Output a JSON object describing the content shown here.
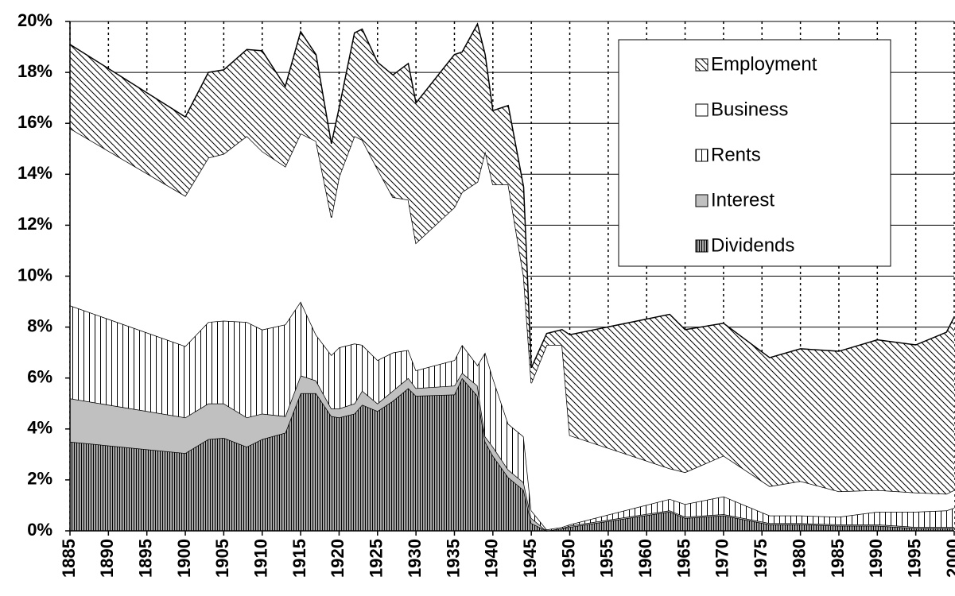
{
  "chart_data": {
    "type": "stacked-area",
    "x": [
      1885,
      1900,
      1903,
      1905,
      1908,
      1910,
      1913,
      1915,
      1917,
      1919,
      1920,
      1922,
      1923,
      1925,
      1927,
      1929,
      1930,
      1935,
      1936,
      1938,
      1939,
      1940,
      1942,
      1944,
      1945,
      1947,
      1949,
      1950,
      1963,
      1965,
      1970,
      1976,
      1980,
      1985,
      1990,
      1995,
      1999,
      2000
    ],
    "series": [
      {
        "name": "Dividends",
        "color": "#a6a6a6",
        "pattern": "dense-vertical",
        "values": [
          3.5,
          3.05,
          3.6,
          3.65,
          3.3,
          3.6,
          3.85,
          5.4,
          5.4,
          4.5,
          4.45,
          4.6,
          4.95,
          4.7,
          5.1,
          5.6,
          5.3,
          5.35,
          6.0,
          5.3,
          3.5,
          2.95,
          2.1,
          1.6,
          0.3,
          0,
          0.1,
          0.15,
          0.75,
          0.5,
          0.6,
          0.25,
          0.25,
          0.2,
          0.2,
          0.1,
          0.1,
          0.1
        ]
      },
      {
        "name": "Interest",
        "color": "#c0c0c0",
        "pattern": "none",
        "values": [
          1.7,
          1.4,
          1.4,
          1.35,
          1.15,
          1.0,
          0.65,
          0.7,
          0.5,
          0.3,
          0.35,
          0.4,
          0.55,
          0.3,
          0.4,
          0.4,
          0.3,
          0.35,
          0.2,
          0.4,
          0.2,
          0.35,
          0.3,
          0.3,
          0.2,
          0,
          0,
          0.05,
          0.05,
          0.05,
          0.05,
          0.05,
          0.05,
          0.05,
          0.05,
          0.05,
          0.05,
          0.05
        ]
      },
      {
        "name": "Rents",
        "color": "#ffffff",
        "pattern": "vertical",
        "values": [
          3.65,
          2.8,
          3.2,
          3.25,
          3.75,
          3.3,
          3.6,
          2.9,
          1.8,
          2.1,
          2.4,
          2.35,
          1.8,
          1.7,
          1.5,
          1.1,
          0.7,
          1.0,
          1.1,
          0.8,
          3.3,
          2.7,
          1.8,
          1.8,
          0.3,
          0.05,
          0.05,
          0.05,
          0.45,
          0.5,
          0.7,
          0.3,
          0.3,
          0.3,
          0.5,
          0.6,
          0.65,
          0.75
        ]
      },
      {
        "name": "Business",
        "color": "#ffffff",
        "pattern": "none",
        "values": [
          6.95,
          5.9,
          6.45,
          6.55,
          7.3,
          7.0,
          6.2,
          6.6,
          7.6,
          5.4,
          6.7,
          8.15,
          8.05,
          7.5,
          6.1,
          5.9,
          5.0,
          6.0,
          6.0,
          7.2,
          7.9,
          7.6,
          9.4,
          6.3,
          5.0,
          7.25,
          7.15,
          3.5,
          1.2,
          1.25,
          1.6,
          1.15,
          1.35,
          1.0,
          0.85,
          0.75,
          0.65,
          0.7
        ]
      },
      {
        "name": "Employment",
        "color": "#ffffff",
        "pattern": "diagonal",
        "values": [
          3.3,
          3.1,
          3.35,
          3.3,
          3.4,
          3.95,
          3.15,
          4.0,
          3.4,
          2.9,
          2.7,
          4.05,
          4.35,
          4.2,
          4.8,
          5.35,
          5.5,
          6.0,
          5.5,
          6.2,
          3.8,
          2.9,
          3.1,
          3.5,
          0.6,
          0.45,
          0.6,
          3.95,
          6.05,
          5.6,
          5.2,
          5.05,
          5.2,
          5.5,
          5.9,
          5.8,
          6.35,
          6.8
        ]
      }
    ],
    "xlim": [
      1885,
      2000
    ],
    "xticks": [
      1885,
      1890,
      1895,
      1900,
      1905,
      1910,
      1915,
      1920,
      1925,
      1930,
      1935,
      1940,
      1945,
      1950,
      1955,
      1960,
      1965,
      1970,
      1975,
      1980,
      1985,
      1990,
      1995,
      2000
    ],
    "ylim": [
      0,
      20
    ],
    "yticks": [
      {
        "value": 0,
        "label": "0%"
      },
      {
        "value": 2,
        "label": "2%"
      },
      {
        "value": 4,
        "label": "4%"
      },
      {
        "value": 6,
        "label": "6%"
      },
      {
        "value": 8,
        "label": "8%"
      },
      {
        "value": 10,
        "label": "10%"
      },
      {
        "value": 12,
        "label": "12%"
      },
      {
        "value": 14,
        "label": "14%"
      },
      {
        "value": 16,
        "label": "16%"
      },
      {
        "value": 18,
        "label": "18%"
      },
      {
        "value": 20,
        "label": "20%"
      }
    ],
    "grid": true,
    "legend": "top-right"
  }
}
